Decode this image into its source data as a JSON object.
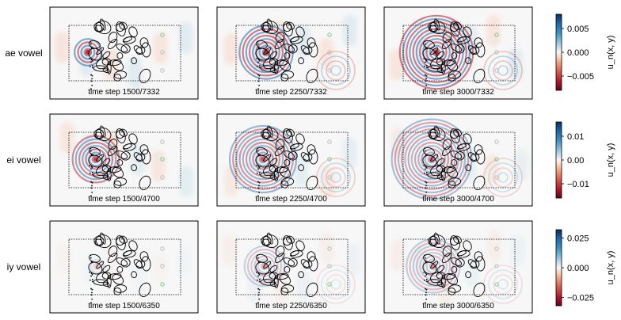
{
  "chart_data": {
    "type": "heatmap",
    "colormap": "RdBu (red negative, white zero, blue positive)",
    "colorbar_label": "u_n(x, y)",
    "rows": [
      {
        "label": "ae vowel",
        "total_steps": 7332,
        "colorbar": {
          "range": [
            -0.008,
            0.008
          ],
          "ticks": [
            0.005,
            0.0,
            -0.005
          ],
          "tick_labels": [
            "0.005",
            "0.000",
            "−0.005"
          ]
        },
        "panels": [
          {
            "caption": "time step 1500/7332",
            "step": 1500
          },
          {
            "caption": "time step 2250/7332",
            "step": 2250
          },
          {
            "caption": "time step 3000/7332",
            "step": 3000
          }
        ]
      },
      {
        "label": "ei vowel",
        "total_steps": 4700,
        "colorbar": {
          "range": [
            -0.016,
            0.016
          ],
          "ticks": [
            0.01,
            0.0,
            -0.01
          ],
          "tick_labels": [
            "0.01",
            "0.00",
            "−0.01"
          ]
        },
        "panels": [
          {
            "caption": "time step 1500/4700",
            "step": 1500
          },
          {
            "caption": "time step 2250/4700",
            "step": 2250
          },
          {
            "caption": "time step 3000/4700",
            "step": 3000
          }
        ]
      },
      {
        "label": "iy vowel",
        "total_steps": 6350,
        "colorbar": {
          "range": [
            -0.032,
            0.032
          ],
          "ticks": [
            0.025,
            0.0,
            -0.025
          ],
          "tick_labels": [
            "0.025",
            "0.000",
            "−0.025"
          ]
        },
        "panels": [
          {
            "caption": "time step 1500/6350",
            "step": 1500
          },
          {
            "caption": "time step 2250/6350",
            "step": 2250
          },
          {
            "caption": "time step 3000/6350",
            "step": 3000
          }
        ]
      }
    ],
    "probes": {
      "count": 3,
      "active_color": "#7fc97f",
      "inactive_color": "#bbbbbb"
    }
  }
}
